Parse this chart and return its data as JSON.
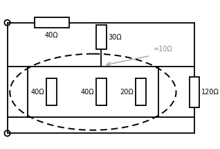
{
  "bg_color": "#ffffff",
  "line_color": "#000000",
  "resistor_labels": {
    "top_40": "40Ω",
    "top_30": "30Ω",
    "right_120": "120Ω",
    "left_40": "40Ω",
    "mid_40": "40Ω",
    "right_20": "20Ω"
  },
  "equiv_label": "=10Ω",
  "annotation_color": "#888888"
}
